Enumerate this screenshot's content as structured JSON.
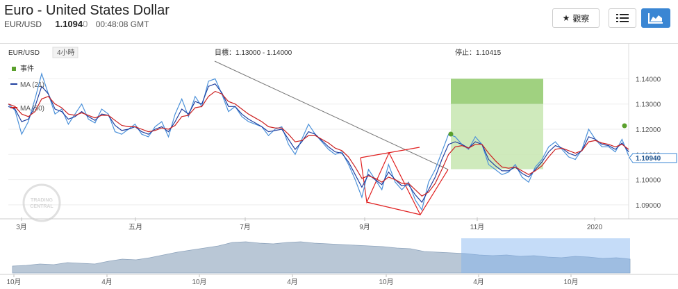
{
  "header": {
    "title": "Euro - United States Dollar",
    "symbol": "EUR/USD",
    "price_main": "1.1094",
    "price_dim": "0",
    "time": "00:48:08 GMT",
    "watch_label": "觀察",
    "icons": {
      "watch": "star-icon",
      "list": "list-icon",
      "chart": "area-chart-icon"
    }
  },
  "chart_data": {
    "type": "line",
    "symbol_label": "EUR/USD",
    "interval_label": "4小時",
    "target_label": "目標：1.13000 - 1.14000",
    "stop_label": "停止：1.10415",
    "legend": [
      {
        "name": "事件",
        "color": "#5aa02c",
        "marker": "square"
      },
      {
        "name": "MA (21)",
        "color": "#1f3f9f",
        "marker": "line"
      },
      {
        "name": "MA (50)",
        "color": "#cc2020",
        "marker": "line"
      }
    ],
    "ylim": [
      1.085,
      1.147
    ],
    "yticks": [
      "1.14000",
      "1.13000",
      "1.12000",
      "1.11000",
      "1.10000",
      "1.09000"
    ],
    "current_price": "1.10940",
    "target_zone": [
      1.13,
      1.14
    ],
    "stop_zone": [
      1.10415,
      1.13
    ],
    "x_tick_labels": [
      "3月",
      "五月",
      "7月",
      "9月",
      "11月",
      "2020"
    ],
    "series": [
      {
        "name": "EUR/USD",
        "color": "#4a90d9",
        "values": [
          1.13,
          1.1275,
          1.118,
          1.123,
          1.132,
          1.142,
          1.134,
          1.126,
          1.128,
          1.122,
          1.126,
          1.13,
          1.124,
          1.1225,
          1.128,
          1.126,
          1.119,
          1.118,
          1.12,
          1.122,
          1.118,
          1.117,
          1.121,
          1.123,
          1.117,
          1.126,
          1.132,
          1.125,
          1.133,
          1.129,
          1.139,
          1.14,
          1.134,
          1.127,
          1.129,
          1.125,
          1.123,
          1.122,
          1.121,
          1.1175,
          1.12,
          1.121,
          1.114,
          1.11,
          1.116,
          1.122,
          1.118,
          1.115,
          1.112,
          1.11,
          1.111,
          1.106,
          1.1,
          1.093,
          1.104,
          1.1,
          1.096,
          1.106,
          1.099,
          1.096,
          1.099,
          1.092,
          1.088,
          1.099,
          1.104,
          1.111,
          1.118,
          1.117,
          1.114,
          1.112,
          1.117,
          1.114,
          1.106,
          1.104,
          1.102,
          1.103,
          1.106,
          1.101,
          1.099,
          1.105,
          1.108,
          1.113,
          1.115,
          1.112,
          1.109,
          1.108,
          1.112,
          1.12,
          1.116,
          1.113,
          1.113,
          1.111,
          1.116,
          1.1094
        ]
      },
      {
        "name": "MA (21)",
        "color": "#1f3f9f",
        "values": [
          1.129,
          1.128,
          1.123,
          1.124,
          1.129,
          1.137,
          1.134,
          1.128,
          1.127,
          1.124,
          1.125,
          1.127,
          1.125,
          1.1235,
          1.126,
          1.1255,
          1.1215,
          1.1195,
          1.12,
          1.121,
          1.119,
          1.118,
          1.12,
          1.121,
          1.119,
          1.123,
          1.128,
          1.126,
          1.131,
          1.13,
          1.137,
          1.138,
          1.1345,
          1.129,
          1.129,
          1.126,
          1.124,
          1.1225,
          1.121,
          1.119,
          1.1195,
          1.12,
          1.116,
          1.112,
          1.115,
          1.119,
          1.118,
          1.1155,
          1.113,
          1.111,
          1.1105,
          1.107,
          1.102,
          1.097,
          1.102,
          1.1,
          1.098,
          1.103,
          1.1,
          1.0975,
          1.098,
          1.094,
          1.091,
          1.096,
          1.101,
          1.108,
          1.114,
          1.115,
          1.114,
          1.1125,
          1.115,
          1.114,
          1.108,
          1.1055,
          1.1035,
          1.1035,
          1.105,
          1.1025,
          1.101,
          1.104,
          1.107,
          1.111,
          1.1135,
          1.1125,
          1.1105,
          1.1095,
          1.1115,
          1.117,
          1.116,
          1.114,
          1.1135,
          1.112,
          1.1145,
          1.111
        ]
      },
      {
        "name": "MA (50)",
        "color": "#cc2020",
        "values": [
          1.13,
          1.129,
          1.126,
          1.125,
          1.127,
          1.132,
          1.133,
          1.13,
          1.1285,
          1.126,
          1.1255,
          1.1265,
          1.1255,
          1.1245,
          1.1255,
          1.1255,
          1.1235,
          1.1215,
          1.121,
          1.121,
          1.12,
          1.119,
          1.1195,
          1.1205,
          1.12,
          1.1215,
          1.125,
          1.1255,
          1.1285,
          1.129,
          1.133,
          1.135,
          1.134,
          1.131,
          1.13,
          1.128,
          1.126,
          1.1245,
          1.123,
          1.121,
          1.1205,
          1.1205,
          1.118,
          1.115,
          1.1155,
          1.1175,
          1.1175,
          1.116,
          1.1145,
          1.1125,
          1.1115,
          1.109,
          1.105,
          1.1005,
          1.1015,
          1.1005,
          1.099,
          1.101,
          1.1,
          1.0985,
          1.0985,
          1.096,
          1.0935,
          1.095,
          1.0985,
          1.104,
          1.11,
          1.113,
          1.1135,
          1.1125,
          1.114,
          1.114,
          1.1105,
          1.1075,
          1.105,
          1.1045,
          1.105,
          1.1035,
          1.102,
          1.1035,
          1.1055,
          1.109,
          1.112,
          1.1125,
          1.1115,
          1.1105,
          1.1115,
          1.115,
          1.1155,
          1.1145,
          1.114,
          1.113,
          1.114,
          1.112
        ]
      }
    ],
    "navigator": {
      "labels": [
        "10月",
        "4月",
        "10月",
        "4月",
        "10月",
        "4月",
        "10月"
      ],
      "values": [
        0.2,
        0.22,
        0.26,
        0.24,
        0.3,
        0.28,
        0.26,
        0.34,
        0.4,
        0.38,
        0.44,
        0.52,
        0.6,
        0.66,
        0.72,
        0.78,
        0.88,
        0.9,
        0.86,
        0.84,
        0.88,
        0.9,
        0.86,
        0.84,
        0.82,
        0.8,
        0.78,
        0.76,
        0.72,
        0.7,
        0.62,
        0.6,
        0.58,
        0.56,
        0.52,
        0.5,
        0.52,
        0.48,
        0.5,
        0.46,
        0.44,
        0.48,
        0.46,
        0.42,
        0.44,
        0.4
      ]
    }
  }
}
